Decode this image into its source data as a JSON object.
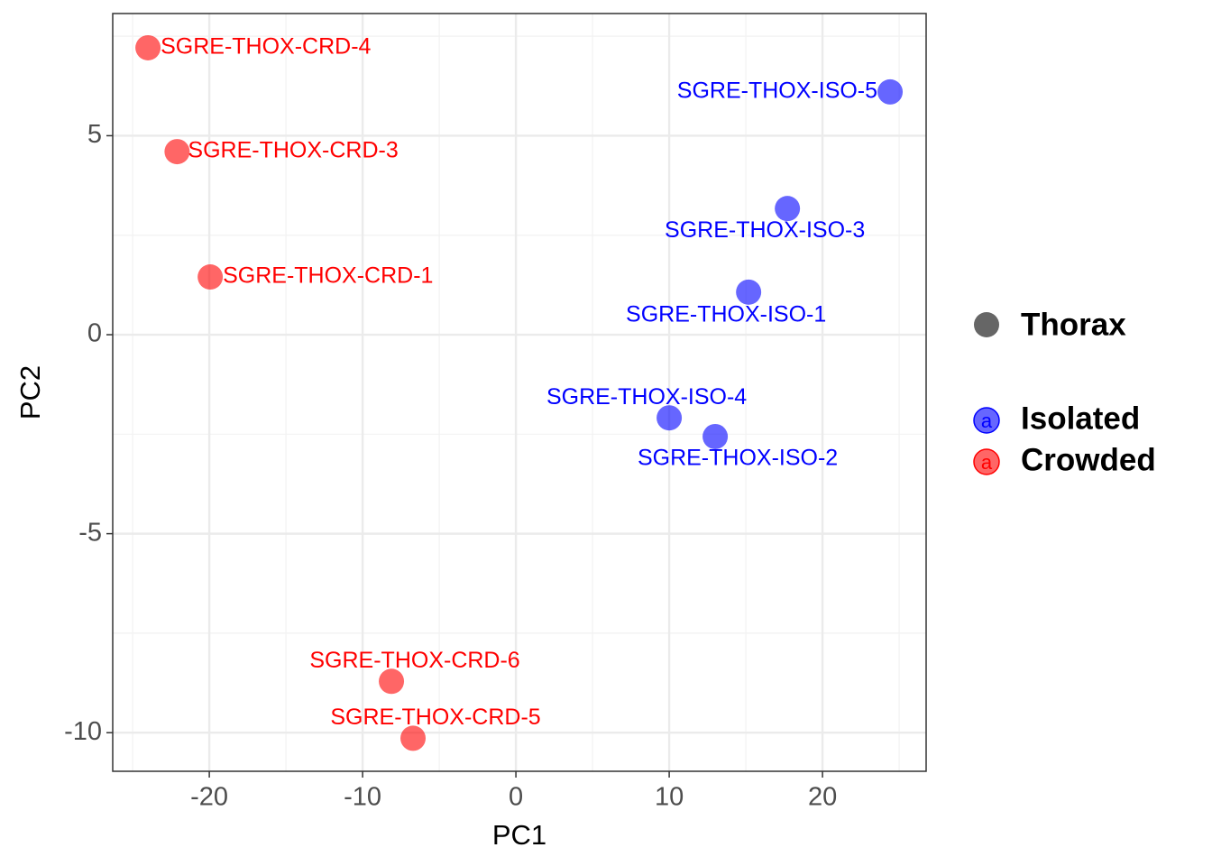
{
  "chart_data": {
    "type": "scatter",
    "x_label": "PC1",
    "y_label": "PC2",
    "legend_title": "Thorax",
    "xlim": [
      -26.3,
      26.76
    ],
    "ylim": [
      -10.97,
      8.07
    ],
    "xticks": [
      -20,
      -10,
      0,
      10,
      20
    ],
    "yticks": [
      -10,
      -5,
      0,
      5
    ],
    "xminor": [
      -25,
      -15,
      -5,
      5,
      15,
      25
    ],
    "yminor": [
      -7.5,
      -2.5,
      2.5,
      7.5
    ],
    "grid": true,
    "legend_position": "right",
    "series": [
      {
        "name": "Isolated",
        "color": "#0000ff",
        "key_glyph": "a",
        "labels": [
          "SGRE-THOX-ISO-5",
          "SGRE-THOX-ISO-3",
          "SGRE-THOX-ISO-1",
          "SGRE-THOX-ISO-4",
          "SGRE-THOX-ISO-2"
        ],
        "x": [
          24.41,
          17.71,
          15.18,
          10.0,
          13.0
        ],
        "values": [
          6.1,
          3.17,
          1.07,
          -2.09,
          -2.56
        ]
      },
      {
        "name": "Crowded",
        "color": "#ff0000",
        "key_glyph": "a",
        "labels": [
          "SGRE-THOX-CRD-4",
          "SGRE-THOX-CRD-3",
          "SGRE-THOX-CRD-1",
          "SGRE-THOX-CRD-6",
          "SGRE-THOX-CRD-5"
        ],
        "x": [
          -24.0,
          -22.1,
          -19.94,
          -8.12,
          -6.71
        ],
        "values": [
          7.21,
          4.6,
          1.45,
          -8.71,
          -10.14
        ]
      }
    ]
  }
}
